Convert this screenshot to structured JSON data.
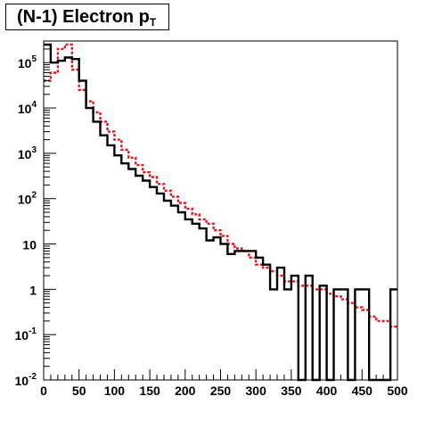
{
  "chart_data": {
    "type": "histogram",
    "title": "(N-1) Electron p",
    "title_subscript": "T",
    "xlabel": "",
    "ylabel": "",
    "xlim": [
      0,
      500
    ],
    "ylim": [
      0.01,
      300000
    ],
    "yscale": "log",
    "grid": false,
    "legend": "none",
    "x_ticks": [
      "0",
      "50",
      "100",
      "150",
      "200",
      "250",
      "300",
      "350",
      "400",
      "450",
      "500"
    ],
    "y_ticks": [
      {
        "value": 0.01,
        "base": "10",
        "exp": "-2"
      },
      {
        "value": 0.1,
        "base": "10",
        "exp": "-1"
      },
      {
        "value": 1,
        "base": "1",
        "exp": ""
      },
      {
        "value": 10,
        "base": "10",
        "exp": ""
      },
      {
        "value": 100,
        "base": "10",
        "exp": "2"
      },
      {
        "value": 1000,
        "base": "10",
        "exp": "3"
      },
      {
        "value": 10000,
        "base": "10",
        "exp": "4"
      },
      {
        "value": 100000,
        "base": "10",
        "exp": "5"
      }
    ],
    "bin_width": 10,
    "series": [
      {
        "style": "solid",
        "color": "#000000",
        "values": [
          250000,
          100000,
          110000,
          130000,
          120000,
          40000,
          10000,
          5000,
          2500,
          1500,
          900,
          600,
          450,
          320,
          250,
          180,
          130,
          90,
          70,
          50,
          35,
          28,
          22,
          12,
          14,
          10,
          6,
          7,
          7,
          7,
          5,
          3.5,
          1,
          3,
          1,
          2,
          0.01,
          2,
          0.01,
          1.2,
          0.01,
          1,
          1,
          0.01,
          1,
          1,
          0.01,
          0.01,
          0.01,
          1
        ]
      },
      {
        "style": "dashed",
        "color": "#e8141c",
        "values": [
          40000,
          60000,
          200000,
          250000,
          70000,
          25000,
          14000,
          8000,
          5000,
          3000,
          2000,
          1200,
          800,
          550,
          380,
          300,
          210,
          150,
          110,
          80,
          60,
          45,
          35,
          28,
          20,
          15,
          10,
          8,
          7,
          5,
          3.5,
          3,
          2.5,
          2,
          1.5,
          1.5,
          1.2,
          1.2,
          1,
          1,
          0.8,
          0.7,
          0.6,
          0.5,
          0.4,
          0.35,
          0.25,
          0.2,
          0.2,
          0.15
        ]
      }
    ]
  }
}
